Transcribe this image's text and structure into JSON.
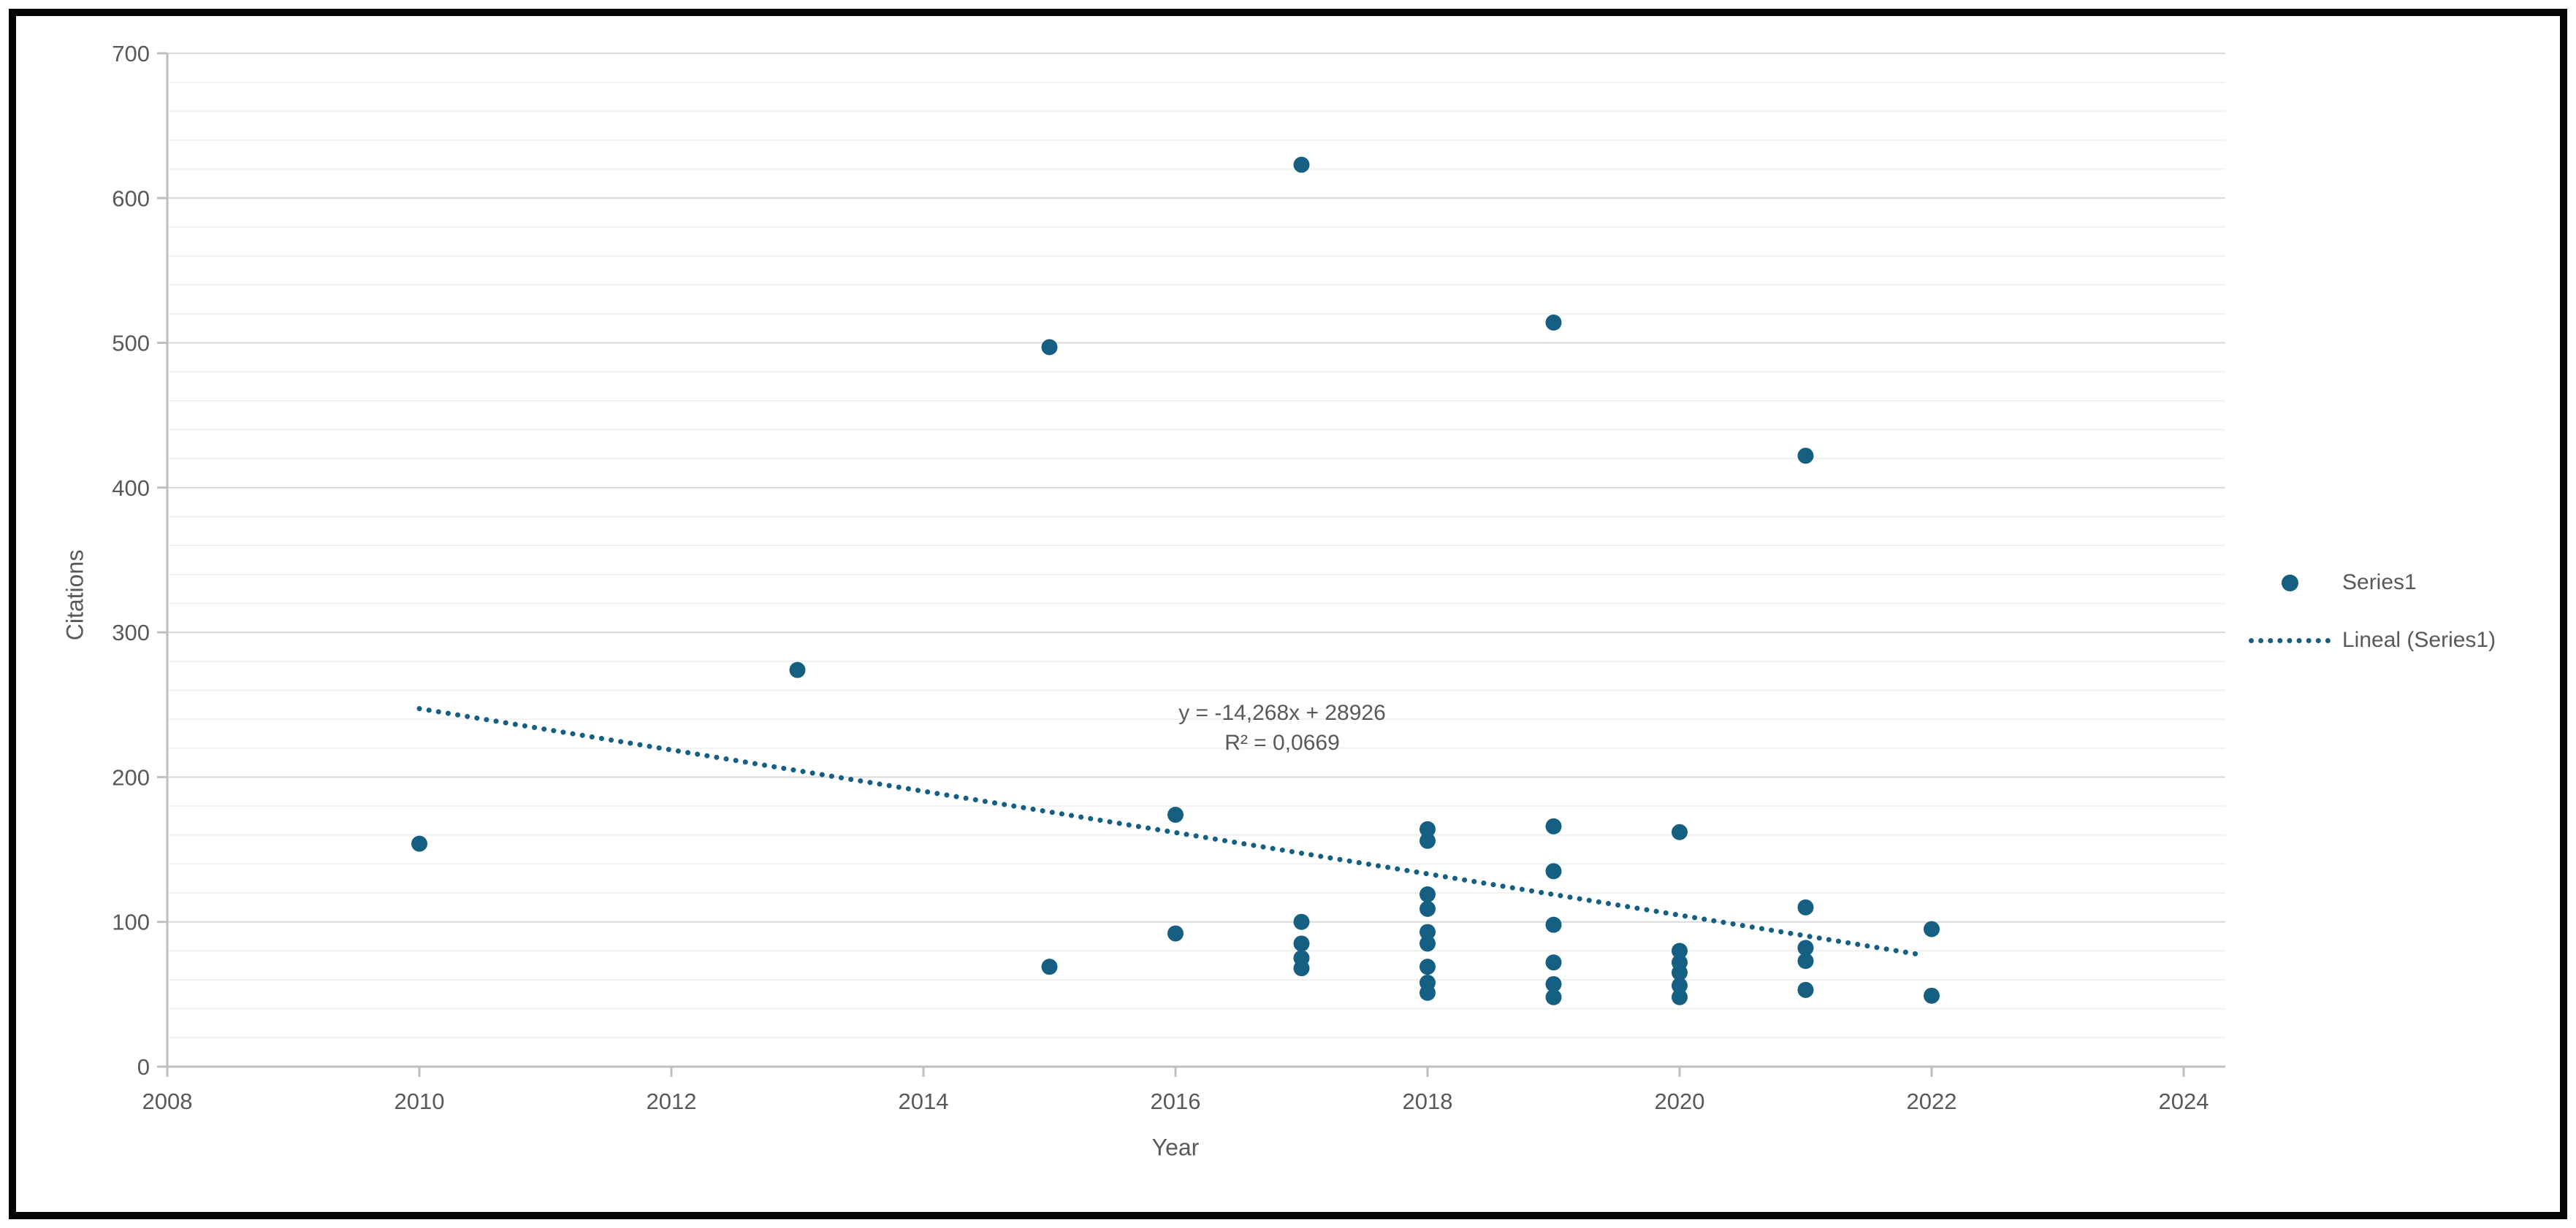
{
  "frame": {
    "border_color": "#060606",
    "background": "#ffffff"
  },
  "colors": {
    "accent": "#156082",
    "text": "#595959",
    "grid_major": "#d9d9d9",
    "grid_minor": "#f1f1f1",
    "axis": "#bfbfbf"
  },
  "chart_data": {
    "type": "scatter",
    "title": "",
    "xlabel": "Year",
    "ylabel": "Citations",
    "xlim": [
      2008,
      2024
    ],
    "ylim": [
      0,
      700
    ],
    "x_ticks": [
      2008,
      2010,
      2012,
      2014,
      2016,
      2018,
      2020,
      2022,
      2024
    ],
    "y_ticks": [
      0,
      100,
      200,
      300,
      400,
      500,
      600,
      700
    ],
    "y_minor_step": 20,
    "grid": true,
    "legend_position": "right",
    "series": [
      {
        "name": "Series1",
        "color": "#156082",
        "marker": "circle",
        "points": [
          [
            2010,
            154
          ],
          [
            2013,
            274
          ],
          [
            2015,
            497
          ],
          [
            2015,
            69
          ],
          [
            2016,
            174
          ],
          [
            2016,
            92
          ],
          [
            2017,
            623
          ],
          [
            2017,
            100
          ],
          [
            2017,
            85
          ],
          [
            2017,
            75
          ],
          [
            2017,
            68
          ],
          [
            2018,
            164
          ],
          [
            2018,
            156
          ],
          [
            2018,
            119
          ],
          [
            2018,
            109
          ],
          [
            2018,
            93
          ],
          [
            2018,
            85
          ],
          [
            2018,
            69
          ],
          [
            2018,
            58
          ],
          [
            2018,
            51
          ],
          [
            2019,
            514
          ],
          [
            2019,
            166
          ],
          [
            2019,
            135
          ],
          [
            2019,
            98
          ],
          [
            2019,
            72
          ],
          [
            2019,
            57
          ],
          [
            2019,
            48
          ],
          [
            2020,
            162
          ],
          [
            2020,
            80
          ],
          [
            2020,
            72
          ],
          [
            2020,
            65
          ],
          [
            2020,
            56
          ],
          [
            2020,
            48
          ],
          [
            2021,
            422
          ],
          [
            2021,
            110
          ],
          [
            2021,
            82
          ],
          [
            2021,
            73
          ],
          [
            2021,
            53
          ],
          [
            2022,
            95
          ],
          [
            2022,
            49
          ]
        ]
      }
    ],
    "trendline": {
      "name": "Lineal (Series1)",
      "color": "#156082",
      "style": "dotted",
      "slope": -14.268,
      "intercept": 28926,
      "x_start": 2010,
      "x_end": 2021.9,
      "equation": "y = -14,268x + 28926",
      "r_squared": "R² = 0,0669"
    },
    "legend": [
      {
        "label": "Series1",
        "marker": "dot"
      },
      {
        "label": "Lineal (Series1)",
        "marker": "dotted-line"
      }
    ]
  }
}
